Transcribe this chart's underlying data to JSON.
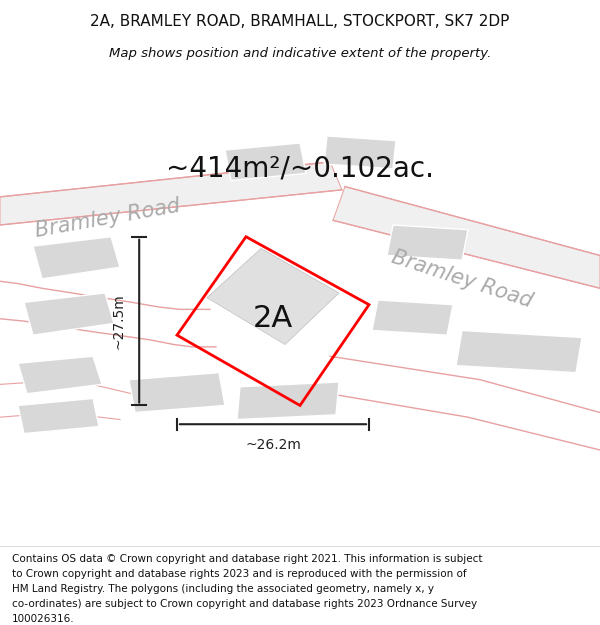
{
  "title_line1": "2A, BRAMLEY ROAD, BRAMHALL, STOCKPORT, SK7 2DP",
  "title_line2": "Map shows position and indicative extent of the property.",
  "area_text": "~414m²/~0.102ac.",
  "label_2a": "2A",
  "dim_vertical": "~27.5m",
  "dim_horizontal": "~26.2m",
  "road_label_top": "Bramley Road",
  "road_label_right": "Bramley Road",
  "footer_lines": [
    "Contains OS data © Crown copyright and database right 2021. This information is subject",
    "to Crown copyright and database rights 2023 and is reproduced with the permission of",
    "HM Land Registry. The polygons (including the associated geometry, namely x, y",
    "co-ordinates) are subject to Crown copyright and database rights 2023 Ordnance Survey",
    "100026316."
  ],
  "bg_color": "#ffffff",
  "map_bg_color": "#ffffff",
  "building_fill": "#d8d8d8",
  "road_line_color": "#e8a0a0",
  "red_outline_color": "#ff0000",
  "dim_line_color": "#222222",
  "road_text_color": "#aaaaaa",
  "title_color": "#111111",
  "area_text_color": "#111111",
  "label_2a_color": "#111111",
  "footer_color": "#111111",
  "title_fontsize": 11,
  "subtitle_fontsize": 9.5,
  "area_fontsize": 20,
  "label_2a_fontsize": 22,
  "dim_fontsize": 10,
  "road_fontsize": 15,
  "footer_fontsize": 7.5
}
